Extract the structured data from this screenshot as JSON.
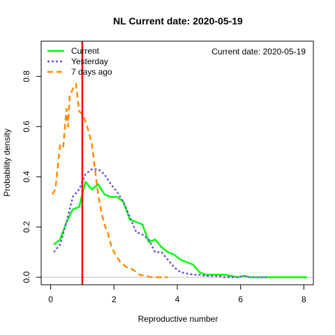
{
  "chart_data": {
    "type": "line",
    "title": "NL   Current date:  2020-05-19",
    "xlabel": "Reproductive number",
    "ylabel": "Probability density",
    "annotation": "Current date:  2020-05-19",
    "xlim": [
      -0.3,
      8.3
    ],
    "ylim": [
      -0.03,
      0.94
    ],
    "xticks": [
      0,
      2,
      4,
      6,
      8
    ],
    "yticks": [
      0.0,
      0.2,
      0.4,
      0.6,
      0.8
    ],
    "ytick_labels": [
      "0.0",
      "0.2",
      "0.4",
      "0.6",
      "0.8"
    ],
    "legend_position": "top-left",
    "grid": false,
    "reference_line": {
      "x": 1.0,
      "color": "#ff0000"
    },
    "zero_line_color": "#bebebe",
    "series": [
      {
        "name": "Current",
        "color": "#00ff00",
        "dash": "solid",
        "x": [
          0.1,
          0.3,
          0.5,
          0.7,
          0.9,
          1.1,
          1.3,
          1.5,
          1.7,
          1.9,
          2.1,
          2.3,
          2.5,
          2.7,
          2.9,
          3.1,
          3.3,
          3.5,
          3.7,
          3.9,
          4.1,
          4.3,
          4.5,
          4.7,
          4.9,
          5.1,
          5.3,
          5.5,
          5.7,
          5.9,
          6.1,
          6.3,
          6.5,
          6.7,
          6.9,
          7.1,
          7.3,
          7.5,
          7.7,
          7.9,
          8.1
        ],
        "y": [
          0.13,
          0.15,
          0.22,
          0.27,
          0.28,
          0.38,
          0.35,
          0.37,
          0.33,
          0.32,
          0.32,
          0.3,
          0.23,
          0.22,
          0.21,
          0.14,
          0.15,
          0.12,
          0.1,
          0.09,
          0.07,
          0.06,
          0.05,
          0.02,
          0.01,
          0.01,
          0.01,
          0.01,
          0.005,
          0.0,
          0.005,
          0.0,
          0.0,
          0.0,
          0.0,
          0.0,
          0.0,
          0.0,
          0.0,
          0.0,
          0.0
        ]
      },
      {
        "name": "Yesterday",
        "color": "#6a5acd",
        "dash": "dotted",
        "x": [
          0.1,
          0.3,
          0.5,
          0.7,
          0.9,
          1.1,
          1.3,
          1.5,
          1.7,
          1.9,
          2.1,
          2.3,
          2.5,
          2.7,
          2.9,
          3.1,
          3.3,
          3.5,
          3.7,
          3.9,
          4.1,
          4.3,
          4.5,
          4.7,
          4.9,
          5.1,
          5.3,
          5.5,
          5.7,
          5.9,
          6.1,
          6.3,
          6.5,
          6.7,
          6.9
        ],
        "y": [
          0.1,
          0.13,
          0.22,
          0.32,
          0.35,
          0.41,
          0.43,
          0.43,
          0.41,
          0.37,
          0.34,
          0.3,
          0.24,
          0.18,
          0.17,
          0.15,
          0.1,
          0.1,
          0.07,
          0.04,
          0.02,
          0.015,
          0.01,
          0.01,
          0.005,
          0.005,
          0.005,
          0.0,
          0.0,
          0.0,
          0.005,
          0.0,
          0.0,
          0.0,
          0.0
        ]
      },
      {
        "name": "7 days ago",
        "color": "#ff8c00",
        "dash": "dashed",
        "x": [
          0.05,
          0.15,
          0.3,
          0.4,
          0.5,
          0.55,
          0.6,
          0.7,
          0.8,
          0.9,
          1.0,
          1.1,
          1.2,
          1.3,
          1.4,
          1.5,
          1.6,
          1.7,
          1.8,
          1.9,
          2.0,
          2.2,
          2.4,
          2.6,
          2.8,
          3.0,
          3.2,
          3.4,
          3.6,
          3.7
        ],
        "y": [
          0.33,
          0.35,
          0.53,
          0.52,
          0.67,
          0.6,
          0.72,
          0.75,
          0.77,
          0.66,
          0.65,
          0.62,
          0.58,
          0.53,
          0.43,
          0.33,
          0.26,
          0.21,
          0.18,
          0.13,
          0.1,
          0.06,
          0.04,
          0.03,
          0.01,
          0.005,
          0.0,
          0.0,
          0.0,
          0.0
        ]
      }
    ]
  }
}
